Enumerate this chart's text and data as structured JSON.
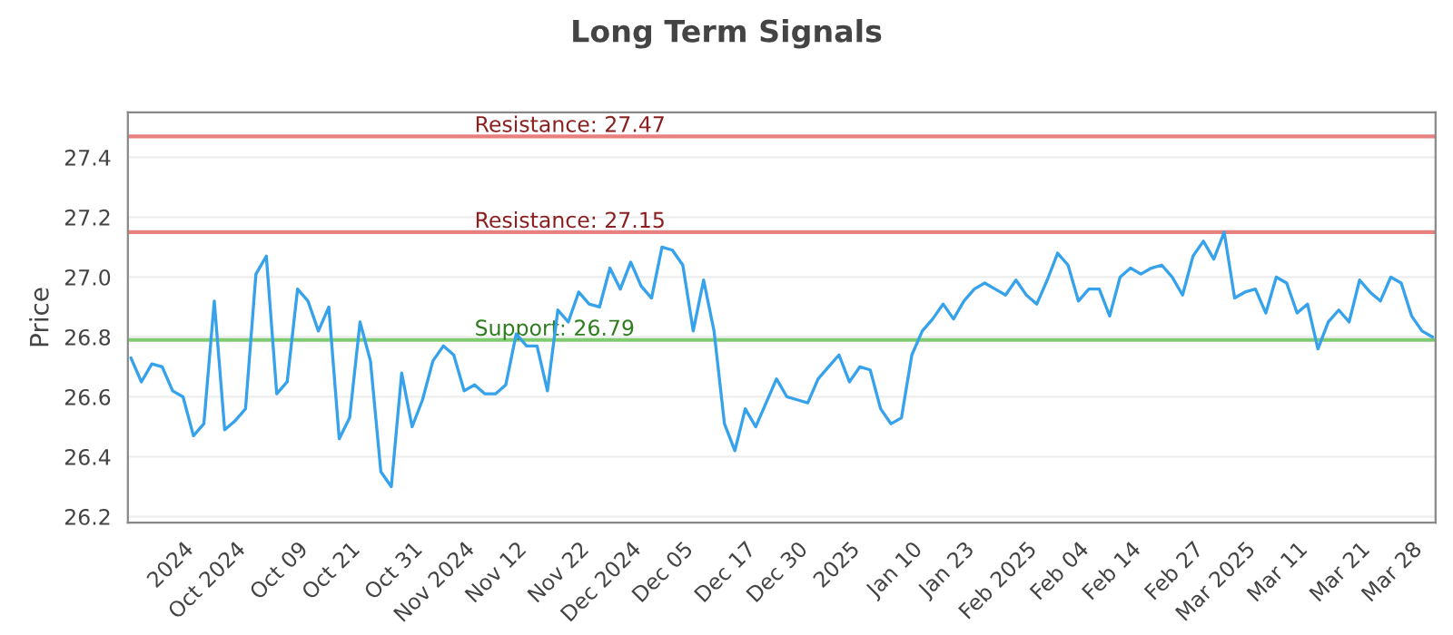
{
  "chart_data": {
    "type": "line",
    "title": "Long Term Signals",
    "ylabel": "Price",
    "categories": [
      null,
      null,
      null,
      null,
      null,
      "2024",
      null,
      null,
      null,
      null,
      "Oct 2024",
      null,
      null,
      null,
      null,
      null,
      "Oct 09",
      null,
      null,
      null,
      null,
      "Oct 21",
      null,
      null,
      null,
      null,
      null,
      "Oct 31",
      null,
      null,
      null,
      null,
      "Nov 2024",
      null,
      null,
      null,
      null,
      "Nov 12",
      null,
      null,
      null,
      null,
      null,
      "Nov 22",
      null,
      null,
      null,
      null,
      "Dec 2024",
      null,
      null,
      null,
      null,
      "Dec 05",
      null,
      null,
      null,
      null,
      null,
      "Dec 17",
      null,
      null,
      null,
      null,
      "Dec 30",
      null,
      null,
      null,
      null,
      "2025",
      null,
      null,
      null,
      null,
      null,
      "Jan 10",
      null,
      null,
      null,
      null,
      "Jan 23",
      null,
      null,
      null,
      null,
      null,
      "Feb 2025",
      null,
      null,
      null,
      null,
      "Feb 04",
      null,
      null,
      null,
      null,
      "Feb 14",
      null,
      null,
      null,
      null,
      null,
      "Feb 27",
      null,
      null,
      null,
      null,
      "Mar 2025",
      null,
      null,
      null,
      null,
      "Mar 11",
      null,
      null,
      null,
      null,
      null,
      "Mar 21",
      null,
      null,
      null,
      null,
      "Mar 28",
      null,
      null
    ],
    "series": [
      {
        "color": "#35a2eb",
        "values": [
          26.73,
          26.65,
          26.71,
          26.7,
          26.62,
          26.6,
          26.47,
          26.51,
          26.92,
          26.49,
          26.52,
          26.56,
          27.01,
          27.07,
          26.61,
          26.65,
          26.96,
          26.92,
          26.82,
          26.9,
          26.46,
          26.53,
          26.85,
          26.72,
          26.35,
          26.3,
          26.68,
          26.5,
          26.59,
          26.72,
          26.77,
          26.74,
          26.62,
          26.64,
          26.61,
          26.61,
          26.64,
          26.81,
          26.77,
          26.77,
          26.62,
          26.89,
          26.85,
          26.95,
          26.91,
          26.9,
          27.03,
          26.96,
          27.05,
          26.97,
          26.93,
          27.1,
          27.09,
          27.04,
          26.82,
          26.99,
          26.82,
          26.51,
          26.42,
          26.56,
          26.5,
          26.58,
          26.66,
          26.6,
          26.59,
          26.58,
          26.66,
          26.7,
          26.74,
          26.65,
          26.7,
          26.69,
          26.56,
          26.51,
          26.53,
          26.74,
          26.82,
          26.86,
          26.91,
          26.86,
          26.92,
          26.96,
          26.98,
          26.96,
          26.94,
          26.99,
          26.94,
          26.91,
          26.99,
          27.08,
          27.04,
          26.92,
          26.96,
          26.96,
          26.87,
          27.0,
          27.03,
          27.01,
          27.03,
          27.04,
          27.0,
          26.94,
          27.07,
          27.12,
          27.06,
          27.15,
          26.93,
          26.95,
          26.96,
          26.88,
          27.0,
          26.98,
          26.88,
          26.91,
          26.76,
          26.85,
          26.89,
          26.85,
          26.99,
          26.95,
          26.92,
          27.0,
          26.98,
          26.87,
          26.82,
          26.8
        ]
      }
    ],
    "ylim": [
      26.18,
      27.55
    ],
    "yticks": [
      26.2,
      26.4,
      26.6,
      26.8,
      {
        "value": 27.0,
        "label": "27.0"
      },
      27.2,
      27.4
    ],
    "ref_lines": [
      {
        "axis": "y",
        "value": 27.47,
        "label": "Resistance: 27.47",
        "color": "#e88080"
      },
      {
        "axis": "y",
        "value": 27.15,
        "label": "Resistance: 27.15",
        "color": "#e88080"
      },
      {
        "axis": "y",
        "value": 26.79,
        "label": "Support: 26.79",
        "color": "#7fcc70"
      }
    ],
    "grid": "y",
    "legend": false,
    "marker": "none",
    "line_style": "solid"
  }
}
